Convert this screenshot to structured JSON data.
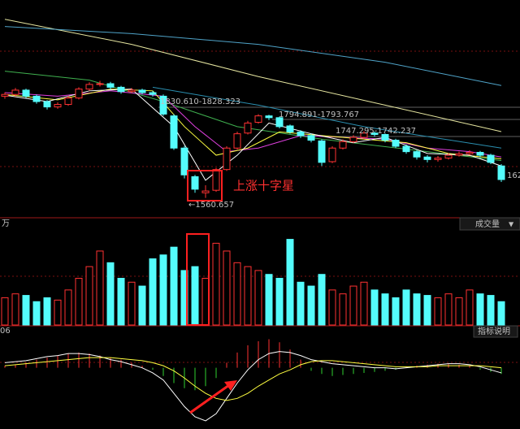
{
  "chart_data": {
    "type": "candlestick",
    "up_color": "#ff3232",
    "down_color": "#54fcfc",
    "ylim": [
      1512,
      2114
    ],
    "open": [
      1845,
      1850,
      1862,
      1845,
      1830,
      1815,
      1822,
      1840,
      1865,
      1878,
      1880,
      1870,
      1858,
      1862,
      1855,
      1845,
      1790,
      1700,
      1620,
      1575,
      1582,
      1640,
      1700,
      1742,
      1772,
      1790,
      1785,
      1762,
      1745,
      1735,
      1720,
      1662,
      1700,
      1718,
      1730,
      1742,
      1738,
      1722,
      1705,
      1690,
      1675,
      1668,
      1672,
      1680,
      1684,
      1688,
      1680,
      1650
    ],
    "high": [
      1856,
      1868,
      1866,
      1850,
      1834,
      1828,
      1846,
      1870,
      1884,
      1888,
      1885,
      1874,
      1868,
      1866,
      1860,
      1850,
      1795,
      1706,
      1625,
      1596,
      1645,
      1705,
      1746,
      1776,
      1794.891,
      1793,
      1788,
      1766,
      1750,
      1740,
      1724,
      1705,
      1724,
      1736,
      1747.295,
      1746,
      1741,
      1726,
      1710,
      1694,
      1680,
      1678,
      1686,
      1690,
      1694,
      1692,
      1684,
      1655
    ],
    "low": [
      1838,
      1844,
      1840,
      1824,
      1808,
      1810,
      1818,
      1836,
      1860,
      1872,
      1864,
      1852,
      1854,
      1850,
      1844,
      1790,
      1695,
      1615,
      1575,
      1560.657,
      1578,
      1636,
      1696,
      1738,
      1768,
      1778,
      1755,
      1740,
      1728,
      1716,
      1650,
      1658,
      1696,
      1714,
      1726,
      1732,
      1716,
      1700,
      1684,
      1668,
      1660,
      1662,
      1668,
      1676,
      1680,
      1674,
      1655,
      1605
    ],
    "close": [
      1850,
      1862,
      1845,
      1830,
      1815,
      1822,
      1840,
      1865,
      1878,
      1880,
      1870,
      1858,
      1862,
      1855,
      1850,
      1795,
      1700,
      1625,
      1585,
      1580,
      1640,
      1700,
      1740,
      1770,
      1790,
      1785,
      1760,
      1745,
      1735,
      1722,
      1660,
      1700,
      1718,
      1730,
      1742,
      1738,
      1722,
      1705,
      1690,
      1675,
      1668,
      1672,
      1680,
      1684,
      1688,
      1680,
      1660,
      1612
    ],
    "lines": [
      {
        "color": "#e6e6a0",
        "x": [
          0,
          12,
          24,
          36,
          47
        ],
        "values": [
          2060,
          1990,
          1900,
          1820,
          1746
        ]
      },
      {
        "color": "#4fa3c8",
        "x": [
          0,
          12,
          24,
          36,
          47
        ],
        "values": [
          2040,
          2020,
          1990,
          1940,
          1875
        ]
      },
      {
        "color": "#3fb04f",
        "x": [
          0,
          8,
          15,
          22,
          30,
          40,
          47
        ],
        "values": [
          1915,
          1890,
          1830,
          1760,
          1725,
          1690,
          1665
        ]
      },
      {
        "color": "#2b8fb0",
        "x": [
          14,
          24,
          34,
          47
        ],
        "values": [
          1870,
          1820,
          1760,
          1700
        ]
      },
      {
        "color": "#e040e0",
        "x": [
          0,
          5,
          10,
          15,
          18,
          21,
          24,
          28,
          32,
          36,
          40,
          44,
          47
        ],
        "values": [
          1855,
          1845,
          1860,
          1845,
          1760,
          1690,
          1700,
          1735,
          1730,
          1725,
          1700,
          1690,
          1675
        ]
      },
      {
        "color": "#ffff40",
        "x": [
          0,
          5,
          10,
          14,
          17,
          20,
          23,
          26,
          30,
          34,
          38,
          42,
          47
        ],
        "values": [
          1850,
          1835,
          1865,
          1860,
          1760,
          1680,
          1700,
          1745,
          1735,
          1725,
          1715,
          1685,
          1670
        ]
      },
      {
        "color": "#ffffff",
        "x": [
          0,
          4,
          8,
          12,
          16,
          19,
          22,
          25,
          29,
          33,
          36,
          40,
          44,
          47
        ],
        "values": [
          1848,
          1830,
          1860,
          1865,
          1760,
          1610,
          1680,
          1770,
          1740,
          1715,
          1730,
          1685,
          1680,
          1650
        ]
      }
    ],
    "annotations": [
      "1830.610-1828.323",
      "1794.891-1793.767",
      "1747.295-1742.237",
      "←1560.657",
      "上涨十字星",
      "162"
    ],
    "volume": {
      "unit": "万",
      "title": "成交量",
      "ylim": [
        0,
        120
      ],
      "values": [
        35,
        40,
        38,
        30,
        35,
        32,
        45,
        60,
        75,
        95,
        80,
        60,
        55,
        50,
        85,
        90,
        100,
        70,
        75,
        60,
        105,
        95,
        80,
        75,
        70,
        65,
        60,
        110,
        55,
        50,
        65,
        45,
        40,
        50,
        55,
        45,
        40,
        35,
        45,
        40,
        38,
        35,
        40,
        35,
        45,
        40,
        38,
        30
      ]
    },
    "macd": {
      "label": "06",
      "button": "指标说明",
      "ylim": [
        -60,
        30
      ],
      "values": [
        2,
        3,
        5,
        8,
        10,
        12,
        14,
        15,
        14,
        12,
        10,
        8,
        5,
        2,
        -2,
        -8,
        -15,
        -20,
        -22,
        -18,
        -10,
        5,
        15,
        22,
        26,
        28,
        25,
        18,
        8,
        -3,
        -6,
        -8,
        -7,
        -6,
        -5,
        -4,
        -3,
        -2,
        1,
        2,
        3,
        4,
        4,
        3,
        2,
        -2,
        -4,
        -6
      ],
      "dif": [
        5,
        6,
        7,
        9,
        11,
        12,
        14,
        14,
        13,
        11,
        8,
        6,
        3,
        0,
        -5,
        -12,
        -25,
        -38,
        -48,
        -52,
        -45,
        -30,
        -15,
        -2,
        8,
        14,
        16,
        15,
        12,
        8,
        6,
        4,
        3,
        2,
        1,
        0,
        0,
        -1,
        0,
        1,
        2,
        3,
        4,
        4,
        3,
        1,
        -2,
        -5
      ],
      "dea": [
        2,
        3,
        4,
        5,
        6,
        7,
        8,
        9,
        10,
        10,
        10,
        9,
        8,
        7,
        5,
        2,
        -3,
        -10,
        -18,
        -25,
        -30,
        -32,
        -30,
        -25,
        -18,
        -12,
        -6,
        -2,
        3,
        6,
        7,
        7,
        6,
        5,
        4,
        3,
        2,
        1,
        1,
        1,
        1,
        2,
        2,
        2,
        2,
        2,
        1,
        0
      ]
    }
  }
}
